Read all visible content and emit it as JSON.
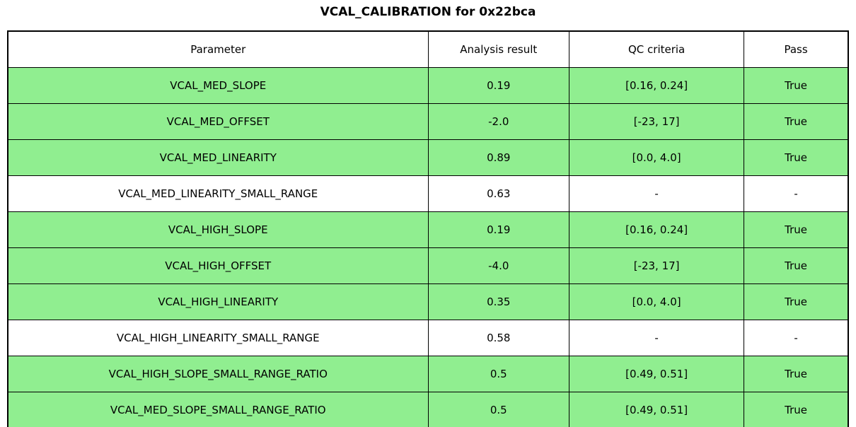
{
  "title": "VCAL_CALIBRATION for 0x22bca",
  "colors": {
    "pass_green": "#90ee90",
    "background": "#ffffff",
    "border": "#000000",
    "text": "#000000"
  },
  "chart_data": {
    "type": "table",
    "title": "VCAL_CALIBRATION for 0x22bca",
    "columns": [
      "Parameter",
      "Analysis result",
      "QC criteria",
      "Pass"
    ],
    "rows": [
      {
        "parameter": "VCAL_MED_SLOPE",
        "result": "0.19",
        "criteria": "[0.16, 0.24]",
        "pass": "True",
        "highlight": true
      },
      {
        "parameter": "VCAL_MED_OFFSET",
        "result": "-2.0",
        "criteria": "[-23, 17]",
        "pass": "True",
        "highlight": true
      },
      {
        "parameter": "VCAL_MED_LINEARITY",
        "result": "0.89",
        "criteria": "[0.0, 4.0]",
        "pass": "True",
        "highlight": true
      },
      {
        "parameter": "VCAL_MED_LINEARITY_SMALL_RANGE",
        "result": "0.63",
        "criteria": "-",
        "pass": "-",
        "highlight": false
      },
      {
        "parameter": "VCAL_HIGH_SLOPE",
        "result": "0.19",
        "criteria": "[0.16, 0.24]",
        "pass": "True",
        "highlight": true
      },
      {
        "parameter": "VCAL_HIGH_OFFSET",
        "result": "-4.0",
        "criteria": "[-23, 17]",
        "pass": "True",
        "highlight": true
      },
      {
        "parameter": "VCAL_HIGH_LINEARITY",
        "result": "0.35",
        "criteria": "[0.0, 4.0]",
        "pass": "True",
        "highlight": true
      },
      {
        "parameter": "VCAL_HIGH_LINEARITY_SMALL_RANGE",
        "result": "0.58",
        "criteria": "-",
        "pass": "-",
        "highlight": false
      },
      {
        "parameter": "VCAL_HIGH_SLOPE_SMALL_RANGE_RATIO",
        "result": "0.5",
        "criteria": "[0.49, 0.51]",
        "pass": "True",
        "highlight": true
      },
      {
        "parameter": "VCAL_MED_SLOPE_SMALL_RANGE_RATIO",
        "result": "0.5",
        "criteria": "[0.49, 0.51]",
        "pass": "True",
        "highlight": true
      }
    ],
    "legend_position": "none",
    "grid": true,
    "row_highlight_meaning": "QC passed"
  }
}
